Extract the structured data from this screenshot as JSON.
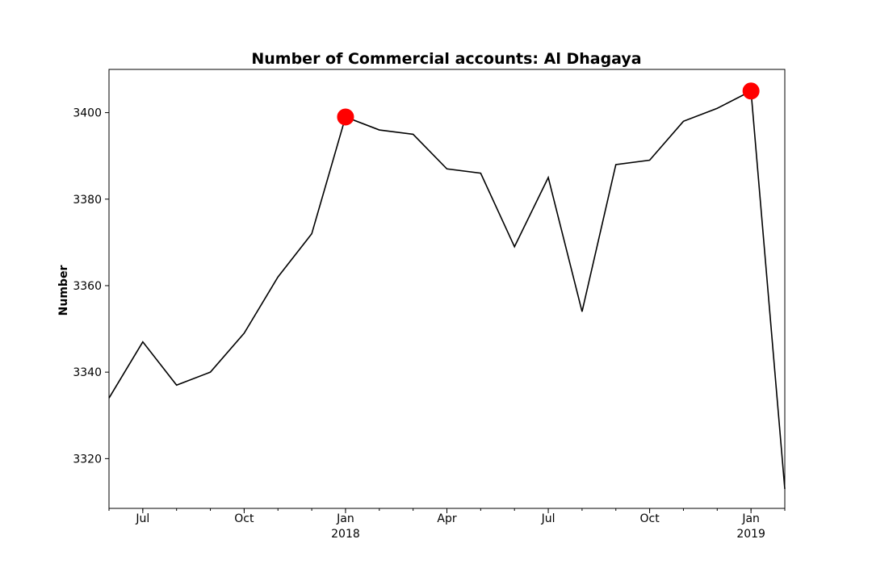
{
  "chart_data": {
    "type": "line",
    "title": "Number of Commercial accounts: Al Dhagaya",
    "xlabel": "",
    "ylabel": "Number",
    "x": [
      "2017-06",
      "2017-07",
      "2017-08",
      "2017-09",
      "2017-10",
      "2017-11",
      "2017-12",
      "2018-01",
      "2018-02",
      "2018-03",
      "2018-04",
      "2018-05",
      "2018-06",
      "2018-07",
      "2018-08",
      "2018-09",
      "2018-10",
      "2018-11",
      "2018-12",
      "2019-01",
      "2019-02"
    ],
    "series": [
      {
        "values": [
          3334,
          3347,
          3337,
          3340,
          3349,
          3362,
          3372,
          3399,
          3396,
          3395,
          3387,
          3386,
          3369,
          3385,
          3354,
          3388,
          3389,
          3398,
          3401,
          3405,
          3313
        ],
        "color": "#000000"
      }
    ],
    "highlights": [
      {
        "x": "2018-01",
        "y": 3399
      },
      {
        "x": "2019-01",
        "y": 3405
      }
    ],
    "highlight_color": "#ff0000",
    "ylim": [
      3308.5,
      3410
    ],
    "yticks": [
      3320,
      3340,
      3360,
      3380,
      3400
    ],
    "xticks_major": [
      {
        "x": "2017-07",
        "label": "Jul",
        "year": ""
      },
      {
        "x": "2017-10",
        "label": "Oct",
        "year": ""
      },
      {
        "x": "2018-01",
        "label": "Jan",
        "year": "2018"
      },
      {
        "x": "2018-04",
        "label": "Apr",
        "year": ""
      },
      {
        "x": "2018-07",
        "label": "Jul",
        "year": ""
      },
      {
        "x": "2018-10",
        "label": "Oct",
        "year": ""
      },
      {
        "x": "2019-01",
        "label": "Jan",
        "year": "2019"
      }
    ],
    "grid": false,
    "legend": "none"
  }
}
